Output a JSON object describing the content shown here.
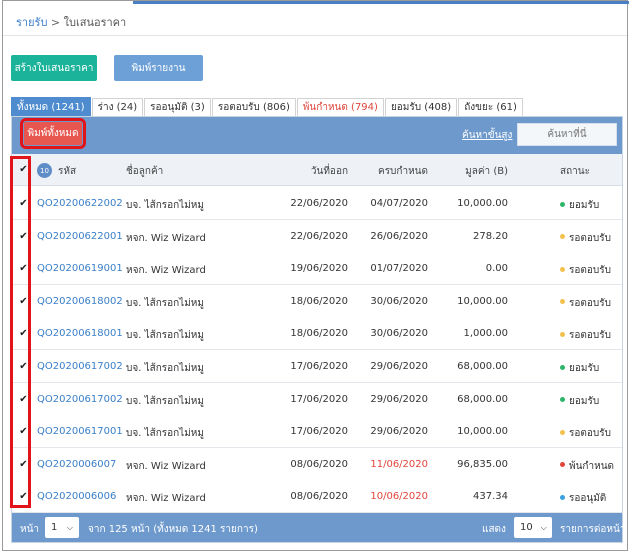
{
  "breadcrumb": {
    "root": "รายรับ",
    "separator": ">",
    "current": "ใบเสนอราคา"
  },
  "actions": {
    "create_label": "สร้างใบเสนอราคา",
    "report_label": "พิมพ์รายงาน"
  },
  "tabs": [
    {
      "label": "ทั้งหมด (1241)",
      "active": true
    },
    {
      "label": "ร่าง (24)"
    },
    {
      "label": "รออนุมัติ (3)"
    },
    {
      "label": "รอตอบรับ (806)"
    },
    {
      "label": "พ้นกำหนด (794)",
      "overdue": true
    },
    {
      "label": "ยอมรับ (408)"
    },
    {
      "label": "ถังขยะ (61)"
    }
  ],
  "toolbar": {
    "print_all_label": "พิมพ์ทั้งหมด",
    "advanced_search_label": "ค้นหาขั้นสูง",
    "search_placeholder": "ค้นหาที่นี่"
  },
  "table": {
    "selected_count": "10",
    "headers": {
      "code": "รหัส",
      "customer": "ชื่อลูกค้า",
      "issued": "วันที่ออก",
      "due": "ครบกำหนด",
      "value": "มูลค่า (B)",
      "status": "สถานะ"
    },
    "rows": [
      {
        "code": "QO20200622002",
        "customer": "บจ. ไส้กรอกไม่หมู",
        "issued": "22/06/2020",
        "due": "04/07/2020",
        "value": "10,000.00",
        "status": "ยอมรับ",
        "status_color": "#2fb56a",
        "late": false
      },
      {
        "code": "QO20200622001",
        "customer": "หจก. Wiz Wizard",
        "issued": "22/06/2020",
        "due": "26/06/2020",
        "value": "278.20",
        "status": "รอตอบรับ",
        "status_color": "#f2c14e",
        "late": false
      },
      {
        "code": "QO20200619001",
        "customer": "หจก. Wiz Wizard",
        "issued": "19/06/2020",
        "due": "01/07/2020",
        "value": "0.00",
        "status": "รอตอบรับ",
        "status_color": "#f2c14e",
        "late": false
      },
      {
        "code": "QO20200618002",
        "customer": "บจ. ไส้กรอกไม่หมู",
        "issued": "18/06/2020",
        "due": "30/06/2020",
        "value": "10,000.00",
        "status": "รอตอบรับ",
        "status_color": "#f2c14e",
        "late": false
      },
      {
        "code": "QO20200618001",
        "customer": "บจ. ไส้กรอกไม่หมู",
        "issued": "18/06/2020",
        "due": "30/06/2020",
        "value": "1,000.00",
        "status": "รอตอบรับ",
        "status_color": "#f2c14e",
        "late": false
      },
      {
        "code": "QO20200617002",
        "customer": "บจ. ไส้กรอกไม่หมู",
        "issued": "17/06/2020",
        "due": "29/06/2020",
        "value": "68,000.00",
        "status": "ยอมรับ",
        "status_color": "#2fb56a",
        "late": false
      },
      {
        "code": "QO20200617002",
        "customer": "บจ. ไส้กรอกไม่หมู",
        "issued": "17/06/2020",
        "due": "29/06/2020",
        "value": "68,000.00",
        "status": "ยอมรับ",
        "status_color": "#2fb56a",
        "late": false
      },
      {
        "code": "QO20200617001",
        "customer": "บจ. ไส้กรอกไม่หมู",
        "issued": "17/06/2020",
        "due": "29/06/2020",
        "value": "10,000.00",
        "status": "รอตอบรับ",
        "status_color": "#f2c14e",
        "late": false
      },
      {
        "code": "QO2020006007",
        "customer": "หจก. Wiz Wizard",
        "issued": "08/06/2020",
        "due": "11/06/2020",
        "value": "96,835.00",
        "status": "พ้นกำหนด",
        "status_color": "#e0463c",
        "late": true
      },
      {
        "code": "QO2020006006",
        "customer": "หจก. Wiz Wizard",
        "issued": "08/06/2020",
        "due": "10/06/2020",
        "value": "437.34",
        "status": "รออนุมัติ",
        "status_color": "#3aa0e0",
        "late": true
      }
    ]
  },
  "pagination": {
    "page_label": "หน้า",
    "page_value": "1",
    "of_text": "จาก 125 หน้า (ทั้งหมด 1241 รายการ)",
    "show_label": "แสดง",
    "per_page_value": "10",
    "per_page_suffix": "รายการต่อหน้า"
  },
  "colors": {
    "accent": "#6e99cc",
    "active_tab": "#4f8ccf",
    "create_button": "#1bb39a",
    "highlight": "#e1141a"
  }
}
